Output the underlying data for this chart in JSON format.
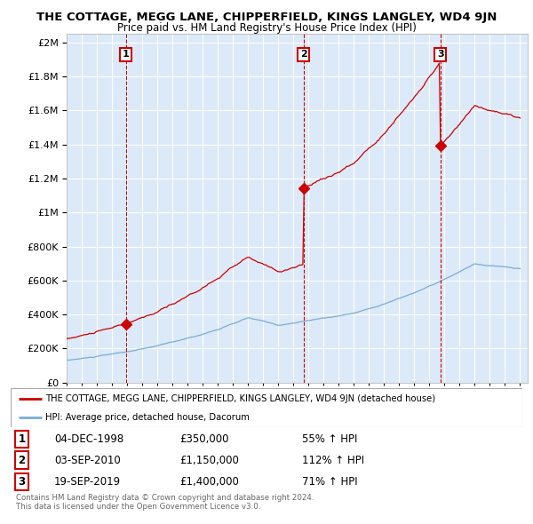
{
  "title": "THE COTTAGE, MEGG LANE, CHIPPERFIELD, KINGS LANGLEY, WD4 9JN",
  "subtitle": "Price paid vs. HM Land Registry's House Price Index (HPI)",
  "red_label": "THE COTTAGE, MEGG LANE, CHIPPERFIELD, KINGS LANGLEY, WD4 9JN (detached house)",
  "blue_label": "HPI: Average price, detached house, Dacorum",
  "footer1": "Contains HM Land Registry data © Crown copyright and database right 2024.",
  "footer2": "This data is licensed under the Open Government Licence v3.0.",
  "sales": [
    {
      "num": 1,
      "date": "04-DEC-1998",
      "price": "£350,000",
      "pct": "55% ↑ HPI",
      "year": 1998.92,
      "value": 350000
    },
    {
      "num": 2,
      "date": "03-SEP-2010",
      "price": "£1,150,000",
      "pct": "112% ↑ HPI",
      "year": 2010.67,
      "value": 1150000
    },
    {
      "num": 3,
      "date": "19-SEP-2019",
      "price": "£1,400,000",
      "pct": "71% ↑ HPI",
      "year": 2019.72,
      "value": 1400000
    }
  ],
  "ylim": [
    0,
    2000000
  ],
  "xlim_start": 1995,
  "xlim_end": 2025.5,
  "background_color": "#ffffff",
  "plot_bg_color": "#dce9f8",
  "grid_color": "#ffffff",
  "red_color": "#cc0000",
  "blue_color": "#7aadd4"
}
